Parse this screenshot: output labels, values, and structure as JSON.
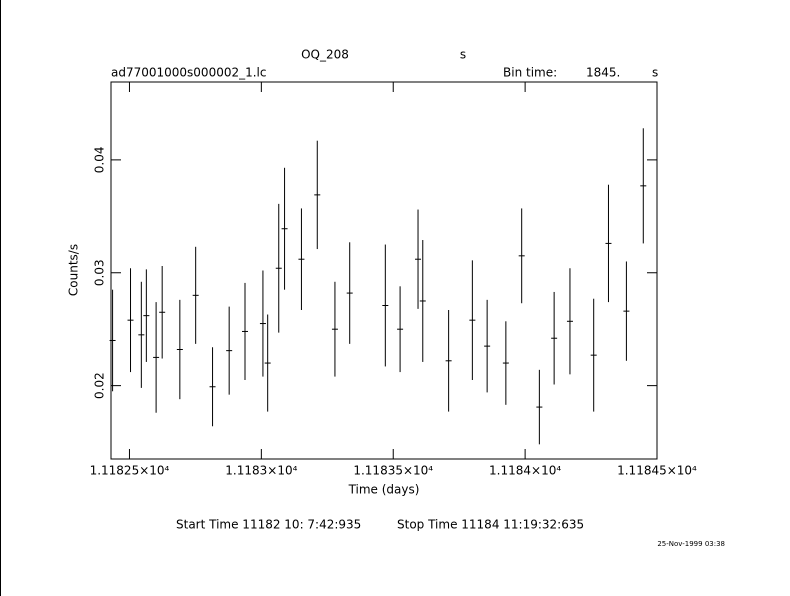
{
  "chart_data": {
    "type": "errorbar",
    "title": "OQ_208",
    "title_unit": "s",
    "file_label": "ad77001000s000002_1.lc",
    "bin_time_label": "Bin time:",
    "bin_time": "1845.",
    "bin_time_unit": "s",
    "x_label": "Time (days)",
    "y_label": "Counts/s",
    "start_time": "Start Time 11182 10: 7:42:935",
    "stop_time": "Stop Time 11184 11:19:32:635",
    "date_stamp": "25-Nov-1999 03:38",
    "xlim": [
      11182.43,
      11184.5
    ],
    "ylim": [
      0.0135,
      0.0469
    ],
    "xticks": [
      {
        "value": 11182.5,
        "label": "1.11825×10⁴"
      },
      {
        "value": 11183,
        "label": "1.1183×10⁴"
      },
      {
        "value": 11183.5,
        "label": "1.11835×10⁴"
      },
      {
        "value": 11184,
        "label": "1.1184×10⁴"
      },
      {
        "value": 11184.5,
        "label": "1.11845×10⁴"
      }
    ],
    "yticks": [
      0.02,
      0.03,
      0.04
    ],
    "series": [
      {
        "color": "#000000",
        "x": [
          11182.436,
          11182.504,
          11182.545,
          11182.564,
          11182.601,
          11182.624,
          11182.691,
          11182.751,
          11182.815,
          11182.878,
          11182.938,
          11183.006,
          11183.024,
          11183.066,
          11183.088,
          11183.152,
          11183.212,
          11183.279,
          11183.335,
          11183.47,
          11183.526,
          11183.594,
          11183.612,
          11183.71,
          11183.8,
          11183.856,
          11183.927,
          11183.987,
          11184.054,
          11184.11,
          11184.17,
          11184.26,
          11184.316,
          11184.384,
          11184.448
        ],
        "values": [
          0.024,
          0.0258,
          0.0245,
          0.0262,
          0.0225,
          0.0265,
          0.0232,
          0.028,
          0.0199,
          0.0231,
          0.0248,
          0.0255,
          0.022,
          0.0304,
          0.0339,
          0.0312,
          0.0369,
          0.025,
          0.0282,
          0.0271,
          0.025,
          0.0312,
          0.0275,
          0.0222,
          0.0258,
          0.0235,
          0.022,
          0.0315,
          0.0181,
          0.0242,
          0.0257,
          0.0227,
          0.0326,
          0.0266,
          0.0377
        ],
        "errors": [
          0.0045,
          0.0046,
          0.0047,
          0.0041,
          0.0049,
          0.0041,
          0.0044,
          0.0043,
          0.0035,
          0.0039,
          0.0043,
          0.0047,
          0.0043,
          0.0057,
          0.0054,
          0.0045,
          0.0048,
          0.0042,
          0.0045,
          0.0054,
          0.0038,
          0.0044,
          0.0054,
          0.0045,
          0.0053,
          0.0041,
          0.0037,
          0.0042,
          0.0033,
          0.0041,
          0.0047,
          0.005,
          0.0052,
          0.0044,
          0.0051
        ]
      }
    ]
  }
}
